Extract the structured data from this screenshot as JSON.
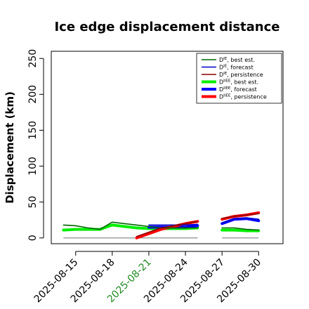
{
  "chart_data": {
    "type": "line",
    "title": "Ice edge displacement distance",
    "xlabel": "",
    "ylabel": "Displacement (km)",
    "xlim": [
      "2025-08-13",
      "2025-09-01"
    ],
    "ylim": [
      -8,
      260
    ],
    "yticks": [
      0,
      50,
      100,
      150,
      200,
      250
    ],
    "xticks": [
      {
        "label": "2025-08-15",
        "date": "2025-08-15",
        "color": "#000000"
      },
      {
        "label": "2025-08-18",
        "date": "2025-08-18",
        "color": "#000000"
      },
      {
        "label": "2025-08-21",
        "date": "2025-08-21",
        "color": "#228B22"
      },
      {
        "label": "2025-08-24",
        "date": "2025-08-24",
        "color": "#000000"
      },
      {
        "label": "2025-08-27",
        "date": "2025-08-27",
        "color": "#000000"
      },
      {
        "label": "2025-08-30",
        "date": "2025-08-30",
        "color": "#000000"
      }
    ],
    "grid": false,
    "legend_position": "top-right",
    "reference_segments": [
      {
        "color": "#808080",
        "x": [
          "2025-08-14",
          "2025-08-25"
        ],
        "y": 0
      },
      {
        "color": "#808080",
        "x": [
          "2025-08-27",
          "2025-08-30"
        ],
        "y": 0
      }
    ],
    "series": [
      {
        "name_main": "D",
        "name_sup": "IE",
        "name_rest": ", best est.",
        "color": "#006400",
        "width": 1.6,
        "x": [
          "2025-08-14",
          "2025-08-15",
          "2025-08-16",
          "2025-08-17",
          "2025-08-18",
          "2025-08-19",
          "2025-08-20",
          "2025-08-21",
          "2025-08-22",
          "2025-08-23",
          "2025-08-24",
          "2025-08-25",
          "2025-08-26",
          "2025-08-27",
          "2025-08-28",
          "2025-08-29",
          "2025-08-30"
        ],
        "y": [
          18,
          17,
          14,
          12,
          22,
          20,
          18,
          16,
          14,
          14,
          14,
          14,
          null,
          14,
          14,
          12,
          11
        ]
      },
      {
        "name_main": "D",
        "name_sup": "IE",
        "name_rest": ", forecast",
        "color": "#0000CD",
        "width": 1.6,
        "x": [
          "2025-08-21",
          "2025-08-22",
          "2025-08-23",
          "2025-08-24",
          "2025-08-25",
          "2025-08-26",
          "2025-08-27",
          "2025-08-28",
          "2025-08-29",
          "2025-08-30"
        ],
        "y": [
          18,
          18,
          18,
          18,
          19,
          null,
          21,
          26,
          28,
          26
        ]
      },
      {
        "name_main": "D",
        "name_sup": "IE",
        "name_rest": ", persistence",
        "color": "#8B0000",
        "width": 1.6,
        "x": [
          "2025-08-20",
          "2025-08-21",
          "2025-08-22",
          "2025-08-23",
          "2025-08-24",
          "2025-08-25",
          "2025-08-26",
          "2025-08-27",
          "2025-08-28",
          "2025-08-29",
          "2025-08-30"
        ],
        "y": [
          2,
          8,
          14,
          17,
          20,
          23,
          null,
          27,
          30,
          32,
          34
        ]
      },
      {
        "name_main": "D",
        "name_sup": "IIEE",
        "name_rest": ", best est.",
        "color": "#00EE00",
        "width": 4,
        "x": [
          "2025-08-14",
          "2025-08-15",
          "2025-08-16",
          "2025-08-17",
          "2025-08-18",
          "2025-08-19",
          "2025-08-20",
          "2025-08-21",
          "2025-08-22",
          "2025-08-23",
          "2025-08-24",
          "2025-08-25",
          "2025-08-26",
          "2025-08-27",
          "2025-08-28",
          "2025-08-29",
          "2025-08-30"
        ],
        "y": [
          11,
          12,
          12,
          12,
          18,
          16,
          14,
          13,
          13,
          13,
          13,
          14,
          null,
          11,
          11,
          10,
          10
        ]
      },
      {
        "name_main": "D",
        "name_sup": "IIEE",
        "name_rest": ", forecast",
        "color": "#0000FF",
        "width": 4,
        "x": [
          "2025-08-21",
          "2025-08-22",
          "2025-08-23",
          "2025-08-24",
          "2025-08-25",
          "2025-08-26",
          "2025-08-27",
          "2025-08-28",
          "2025-08-29",
          "2025-08-30"
        ],
        "y": [
          15,
          15,
          15,
          15,
          17,
          null,
          20,
          26,
          27,
          24
        ]
      },
      {
        "name_main": "D",
        "name_sup": "IIEE",
        "name_rest": ", persistence",
        "color": "#FF0000",
        "width": 4,
        "x": [
          "2025-08-20",
          "2025-08-21",
          "2025-08-22",
          "2025-08-23",
          "2025-08-24",
          "2025-08-25",
          "2025-08-26",
          "2025-08-27",
          "2025-08-28",
          "2025-08-29",
          "2025-08-30"
        ],
        "y": [
          0,
          6,
          12,
          16,
          20,
          23,
          null,
          26,
          30,
          32,
          35
        ]
      }
    ]
  }
}
